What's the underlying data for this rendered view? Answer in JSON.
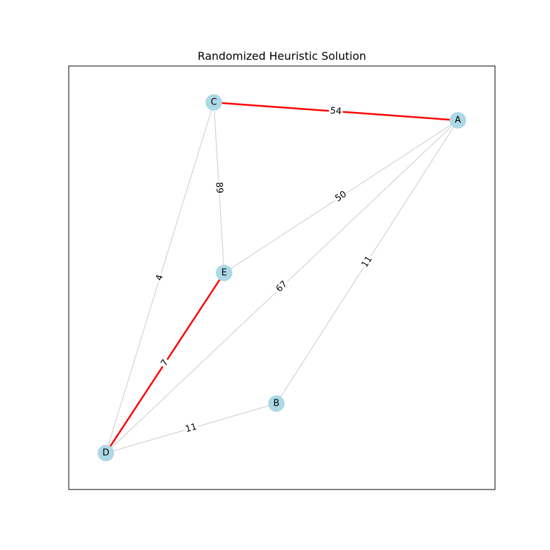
{
  "figure": {
    "title": "Randomized Heuristic Solution"
  },
  "colors": {
    "node_fill": "#add8e6",
    "edge_default": "#d3d3d3",
    "edge_highlight": "#ff0000",
    "frame": "#000000",
    "label_bg": "#ffffff"
  },
  "graph": {
    "nodes": [
      {
        "id": "A",
        "label": "A"
      },
      {
        "id": "B",
        "label": "B"
      },
      {
        "id": "C",
        "label": "C"
      },
      {
        "id": "D",
        "label": "D"
      },
      {
        "id": "E",
        "label": "E"
      }
    ],
    "edges": [
      {
        "source": "C",
        "target": "A",
        "weight": "54",
        "highlighted": true
      },
      {
        "source": "C",
        "target": "E",
        "weight": "89",
        "highlighted": false
      },
      {
        "source": "C",
        "target": "D",
        "weight": "4",
        "highlighted": false
      },
      {
        "source": "A",
        "target": "E",
        "weight": "50",
        "highlighted": false
      },
      {
        "source": "A",
        "target": "D",
        "weight": "67",
        "highlighted": false
      },
      {
        "source": "A",
        "target": "B",
        "weight": "11",
        "highlighted": false
      },
      {
        "source": "E",
        "target": "D",
        "weight": "7",
        "highlighted": true
      },
      {
        "source": "D",
        "target": "B",
        "weight": "11",
        "highlighted": false
      }
    ]
  }
}
